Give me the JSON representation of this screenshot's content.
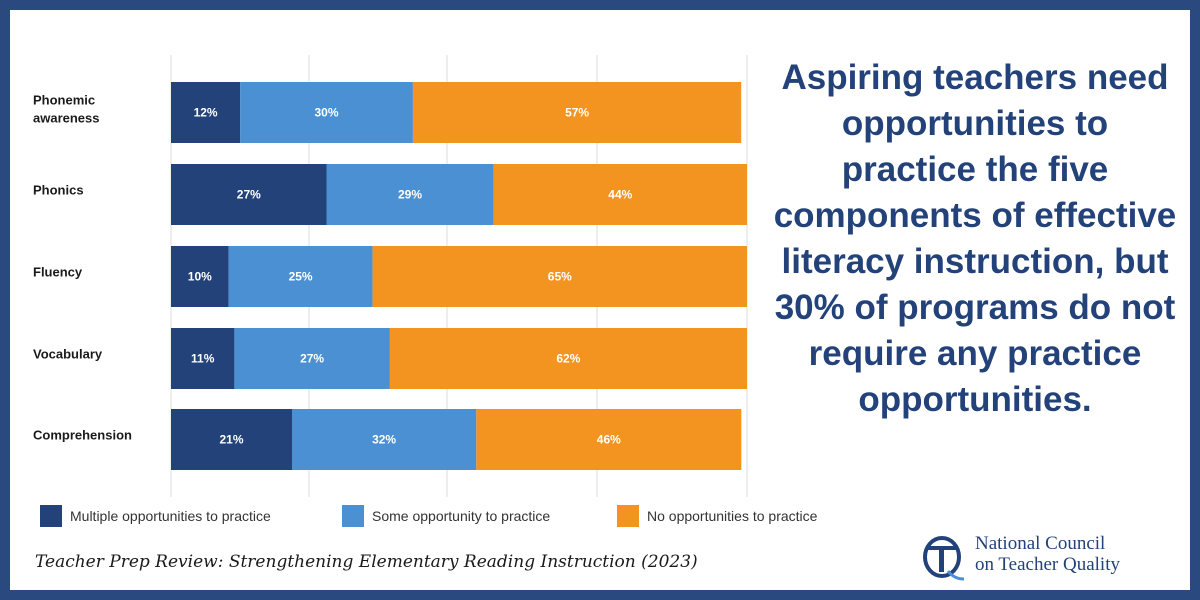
{
  "chart_data": {
    "type": "bar",
    "orientation": "horizontal",
    "stacked": true,
    "categories": [
      "Phonemic awareness",
      "Phonics",
      "Fluency",
      "Vocabulary",
      "Comprehension"
    ],
    "series": [
      {
        "name": "Multiple opportunities to practice",
        "color": "#23427a",
        "values": [
          12,
          27,
          10,
          11,
          21
        ],
        "labels": [
          "12%",
          "27%",
          "10%",
          "11%",
          "21%"
        ]
      },
      {
        "name": "Some opportunity to practice",
        "color": "#4a90d2",
        "values": [
          30,
          29,
          25,
          27,
          32
        ],
        "labels": [
          "30%",
          "29%",
          "25%",
          "27%",
          "32%"
        ]
      },
      {
        "name": "No opportunities to practice",
        "color": "#f39420",
        "values": [
          57,
          44,
          65,
          62,
          46
        ],
        "labels": [
          "57%",
          "44%",
          "65%",
          "62%",
          "46%"
        ]
      }
    ],
    "xlim": [
      0,
      100
    ],
    "grid": true,
    "legend": "bottom"
  },
  "callout": "Aspiring teachers need opportunities to practice the five components of effective literacy instruction, but 30% of programs do not require any practice opportunities.",
  "source": "Teacher Prep Review: Strengthening Elementary Reading Instruction (2023)",
  "logo": {
    "line1": "National Council",
    "line2": "on Teacher Quality",
    "icon": "nctq-logo-icon"
  },
  "colors": {
    "border": "#2a4a7f",
    "text_accent": "#23427a"
  }
}
